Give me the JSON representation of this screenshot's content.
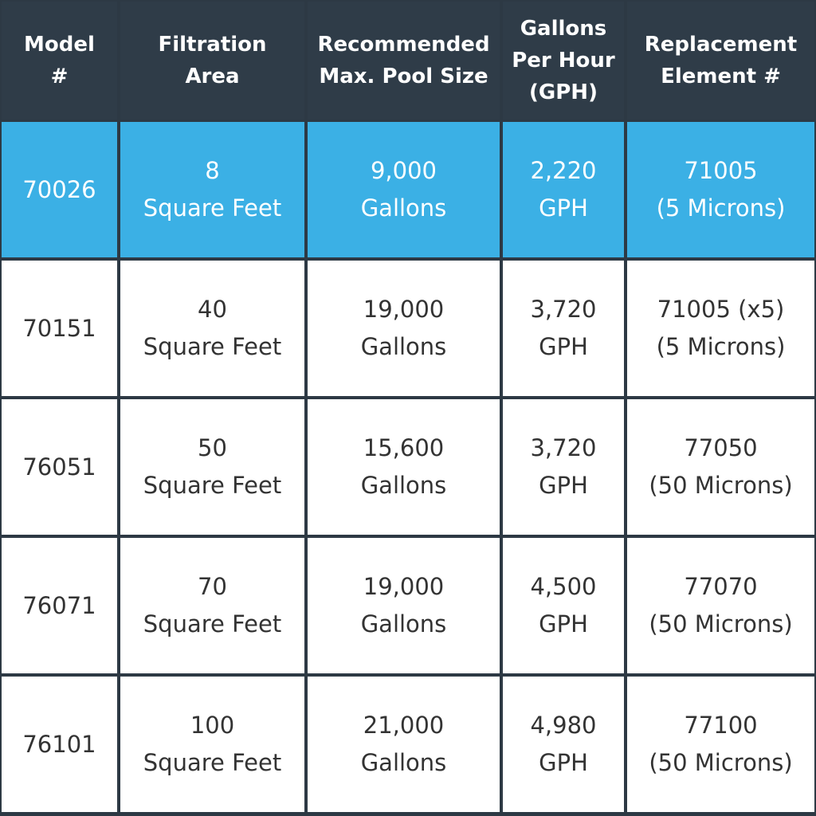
{
  "table": {
    "header": [
      [
        "Model",
        "#"
      ],
      [
        "Filtration",
        "Area"
      ],
      [
        "Recommended",
        "Max. Pool Size"
      ],
      [
        "Gallons",
        "Per Hour",
        "(GPH)"
      ],
      [
        "Replacement",
        "Element #"
      ]
    ],
    "rows": [
      [
        [
          "70026"
        ],
        [
          "8",
          "Square Feet"
        ],
        [
          "9,000",
          "Gallons"
        ],
        [
          "2,220",
          "GPH"
        ],
        [
          "71005",
          "(5 Microns)"
        ]
      ],
      [
        [
          "70151"
        ],
        [
          "40",
          "Square Feet"
        ],
        [
          "19,000",
          "Gallons"
        ],
        [
          "3,720",
          "GPH"
        ],
        [
          "71005 (x5)",
          "(5 Microns)"
        ]
      ],
      [
        [
          "76051"
        ],
        [
          "50",
          "Square Feet"
        ],
        [
          "15,600",
          "Gallons"
        ],
        [
          "3,720",
          "GPH"
        ],
        [
          "77050",
          "(50 Microns)"
        ]
      ],
      [
        [
          "76071"
        ],
        [
          "70",
          "Square Feet"
        ],
        [
          "19,000",
          "Gallons"
        ],
        [
          "4,500",
          "GPH"
        ],
        [
          "77070",
          "(50 Microns)"
        ]
      ],
      [
        [
          "76101"
        ],
        [
          "100",
          "Square Feet"
        ],
        [
          "21,000",
          "Gallons"
        ],
        [
          "4,980",
          "GPH"
        ],
        [
          "77100",
          "(50 Microns)"
        ]
      ]
    ]
  }
}
